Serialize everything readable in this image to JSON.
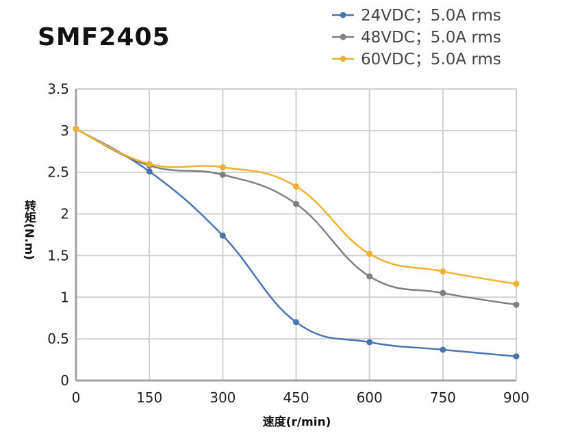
{
  "chart_data": {
    "type": "line",
    "title": "SMF2405",
    "xlabel": "速度(r/min)",
    "ylabel": "转矩(N.m)",
    "x": [
      0,
      150,
      300,
      450,
      600,
      750,
      900
    ],
    "xlim": [
      0,
      900
    ],
    "ylim": [
      0,
      3.5
    ],
    "xticks": [
      "0",
      "150",
      "300",
      "450",
      "600",
      "750",
      "900"
    ],
    "yticks": [
      "0",
      "0.5",
      "1",
      "1.5",
      "2",
      "2.5",
      "3",
      "3.5"
    ],
    "grid": true,
    "legend_position": "top-right",
    "series": [
      {
        "name": "24VDC；5.0A rms",
        "color": "#4a74b0",
        "values": [
          3.02,
          2.51,
          1.74,
          0.7,
          0.46,
          0.37,
          0.29
        ]
      },
      {
        "name": "48VDC；5.0A rms",
        "color": "#7f7f7f",
        "values": [
          3.02,
          2.58,
          2.47,
          2.12,
          1.25,
          1.05,
          0.91
        ]
      },
      {
        "name": "60VDC；5.0A rms",
        "color": "#f0b030",
        "values": [
          3.02,
          2.6,
          2.56,
          2.33,
          1.52,
          1.31,
          1.16
        ]
      }
    ]
  }
}
